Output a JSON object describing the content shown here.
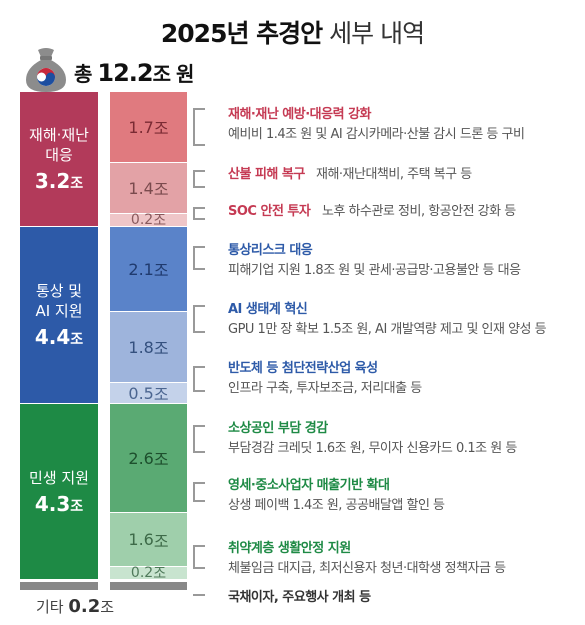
{
  "header": {
    "title_bold": "2025년 추경안",
    "title_light": "세부 내역"
  },
  "total": {
    "prefix": "총",
    "value": "12.2",
    "unit": "조 원"
  },
  "categories": [
    {
      "label": "재해·재난\n대응",
      "amount": "3.2",
      "unit": "조",
      "color": "#b23a5a"
    },
    {
      "label": "통상 및\nAI 지원",
      "amount": "4.4",
      "unit": "조",
      "color": "#2d5aa8"
    },
    {
      "label": "민생 지원",
      "amount": "4.3",
      "unit": "조",
      "color": "#1e8a45"
    }
  ],
  "others": {
    "label": "기타",
    "amount": "0.2",
    "unit": "조"
  },
  "chart_data": {
    "type": "bar",
    "title": "2025년 추경안 세부 내역",
    "total": 12.2,
    "unit": "조 원",
    "groups": [
      {
        "name": "재해·재난 대응",
        "total": 3.2,
        "items": [
          {
            "name": "재해·재난 예방·대응력 강화",
            "value": 1.7,
            "desc": "예비비 1.4조 원 및 AI 감시카메라·산불 감시 드론 등 구비",
            "color": "#e07a7f"
          },
          {
            "name": "산불 피해 복구",
            "value": 1.4,
            "desc": "재해·재난대책비, 주택 복구 등",
            "color": "#e3a2a6"
          },
          {
            "name": "SOC 안전 투자",
            "value": 0.2,
            "desc": "노후 하수관로 정비, 항공안전 강화 등",
            "color": "#efc6c8"
          }
        ]
      },
      {
        "name": "통상 및 AI 지원",
        "total": 4.4,
        "items": [
          {
            "name": "통상리스크 대응",
            "value": 2.1,
            "desc": "피해기업 지원 1.8조 원 및 관세·공급망·고용불안 등 대응",
            "color": "#5a83c9"
          },
          {
            "name": "AI 생태계 혁신",
            "value": 1.8,
            "desc": "GPU 1만 장 확보 1.5조 원, AI 개발역량 제고 및 인재 양성 등",
            "color": "#9eb4dc"
          },
          {
            "name": "반도체 등 첨단전략산업 육성",
            "value": 0.5,
            "desc": "인프라 구축, 투자보조금, 저리대출 등",
            "color": "#c4d2ea"
          }
        ]
      },
      {
        "name": "민생 지원",
        "total": 4.3,
        "items": [
          {
            "name": "소상공인 부담 경감",
            "value": 2.6,
            "desc": "부담경감 크레딧 1.6조 원, 무이자 신용카드 0.1조 원 등",
            "color": "#5aaa73"
          },
          {
            "name": "영세·중소사업자 매출기반 확대",
            "value": 1.6,
            "desc": "상생 페이백 1.4조 원, 공공배달앱 할인 등",
            "color": "#9fcfab"
          },
          {
            "name": "취약계층 생활안정 지원",
            "value": 0.2,
            "desc": "체불임금 대지급, 최저신용자 청년·대학생 정책자금 등",
            "color": "#c8e4cf"
          }
        ]
      },
      {
        "name": "기타",
        "total": 0.2,
        "items": [
          {
            "name": "국채이자, 주요행사 개최 등",
            "value": 0.2,
            "desc": "",
            "color": "#888888"
          }
        ]
      }
    ]
  }
}
